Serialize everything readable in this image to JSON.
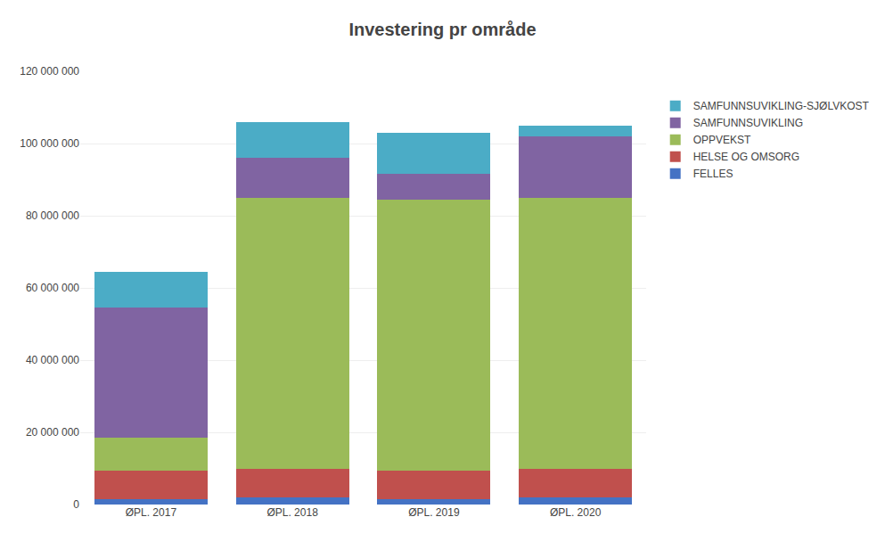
{
  "chart_data": {
    "type": "bar",
    "stacked": true,
    "title": "Investering pr område",
    "categories": [
      "ØPL. 2017",
      "ØPL. 2018",
      "ØPL. 2019",
      "ØPL. 2020"
    ],
    "series": [
      {
        "name": "FELLES",
        "color": "#4472C4",
        "values": [
          1500000,
          2000000,
          1500000,
          2000000
        ]
      },
      {
        "name": "HELSE OG OMSORG",
        "color": "#C0504D",
        "values": [
          8000000,
          8000000,
          8000000,
          8000000
        ]
      },
      {
        "name": "OPPVEKST",
        "color": "#9BBB59",
        "values": [
          9000000,
          75000000,
          75000000,
          75000000
        ]
      },
      {
        "name": "SAMFUNNSUVIKLING",
        "color": "#8064A2",
        "values": [
          36000000,
          11000000,
          7000000,
          17000000
        ]
      },
      {
        "name": "SAMFUNNSUVIKLING-SJØLVKOST",
        "color": "#4BACC6",
        "values": [
          10000000,
          10000000,
          11500000,
          3000000
        ]
      }
    ],
    "ylim": [
      0,
      120000000
    ],
    "yticks": [
      0,
      {
        "value": 20000000,
        "label": "20 000 000"
      },
      {
        "value": 40000000,
        "label": "40 000 000"
      },
      {
        "value": 60000000,
        "label": "60 000 000"
      },
      {
        "value": 80000000,
        "label": "80 000 000"
      },
      {
        "value": 100000000,
        "label": "100 000 000"
      },
      {
        "value": 120000000,
        "label": "120 000 000"
      }
    ],
    "grid": true,
    "legend": "upper right"
  }
}
